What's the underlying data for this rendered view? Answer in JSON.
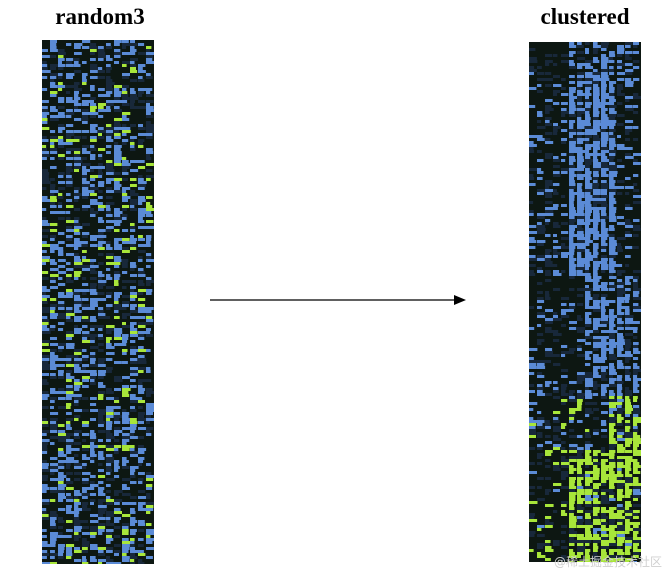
{
  "labels": {
    "left_title": "random3",
    "right_title": "clustered"
  },
  "watermark": "@稀土掘金技术社区",
  "colors": {
    "background": "#0d1712",
    "dark": "#18283a",
    "blue": "#5b8bd6",
    "green": "#a8e63a"
  },
  "heatmaps": [
    {
      "name": "random3",
      "arrangement": "random, unclustered rows"
    },
    {
      "name": "clustered",
      "arrangement": "rows grouped: blue blocks on top, green blocks at bottom"
    }
  ]
}
